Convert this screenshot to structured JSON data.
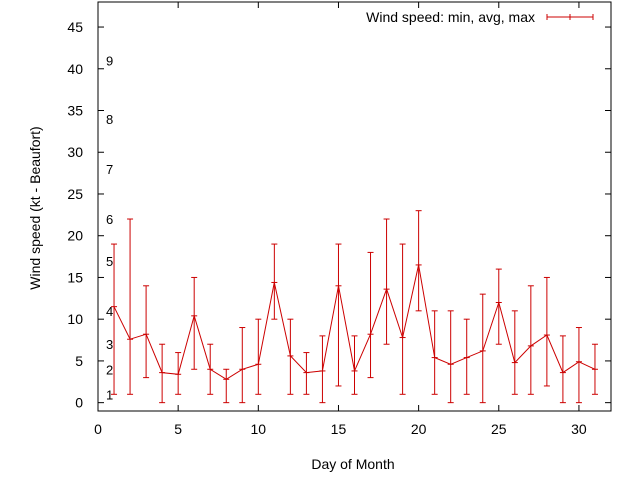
{
  "chart_data": {
    "type": "line",
    "title": "",
    "xlabel": "Day of Month",
    "ylabel": "Wind speed (kt - Beaufort)",
    "xlim": [
      0,
      32
    ],
    "ylim": [
      -1,
      48
    ],
    "x_ticks": [
      0,
      5,
      10,
      15,
      20,
      25,
      30
    ],
    "y_ticks": [
      0,
      5,
      10,
      15,
      20,
      25,
      30,
      35,
      40,
      45
    ],
    "legend": {
      "label": "Wind speed: min, avg, max",
      "position": "top-right"
    },
    "series": [
      {
        "name": "Wind speed: min, avg, max",
        "color": "#cc0000",
        "x": [
          1,
          2,
          3,
          4,
          5,
          6,
          7,
          8,
          9,
          10,
          11,
          12,
          13,
          14,
          15,
          16,
          17,
          18,
          19,
          20,
          21,
          22,
          23,
          24,
          25,
          26,
          27,
          28,
          29,
          30,
          31
        ],
        "min": [
          1,
          1,
          3,
          0,
          1,
          4,
          1,
          0,
          0,
          1,
          10,
          1,
          1,
          0,
          2,
          1,
          3,
          7,
          1,
          11,
          1,
          0,
          1,
          0,
          7,
          1,
          1,
          2,
          0,
          0,
          1
        ],
        "avg": [
          11.5,
          7.6,
          8.2,
          3.6,
          3.4,
          10.4,
          4,
          2.8,
          4,
          4.6,
          14.4,
          5.6,
          3.6,
          3.8,
          14,
          3.8,
          8.2,
          13.6,
          7.8,
          16.5,
          5.4,
          4.6,
          5.4,
          6.2,
          12,
          4.8,
          6.8,
          8.1,
          3.6,
          4.9,
          4
        ],
        "max": [
          19,
          22,
          14,
          7,
          6,
          15,
          7,
          4,
          9,
          10,
          19,
          10,
          6,
          8,
          19,
          8,
          18,
          22,
          19,
          23,
          11,
          11,
          10,
          13,
          16,
          11,
          14,
          15,
          8,
          9,
          7
        ]
      }
    ],
    "beaufort_labels": [
      {
        "label": "1",
        "y": 1
      },
      {
        "label": "2",
        "y": 4
      },
      {
        "label": "3",
        "y": 7
      },
      {
        "label": "4",
        "y": 11
      },
      {
        "label": "5",
        "y": 17
      },
      {
        "label": "6",
        "y": 22
      },
      {
        "label": "7",
        "y": 28
      },
      {
        "label": "8",
        "y": 34
      },
      {
        "label": "9",
        "y": 41
      }
    ]
  }
}
